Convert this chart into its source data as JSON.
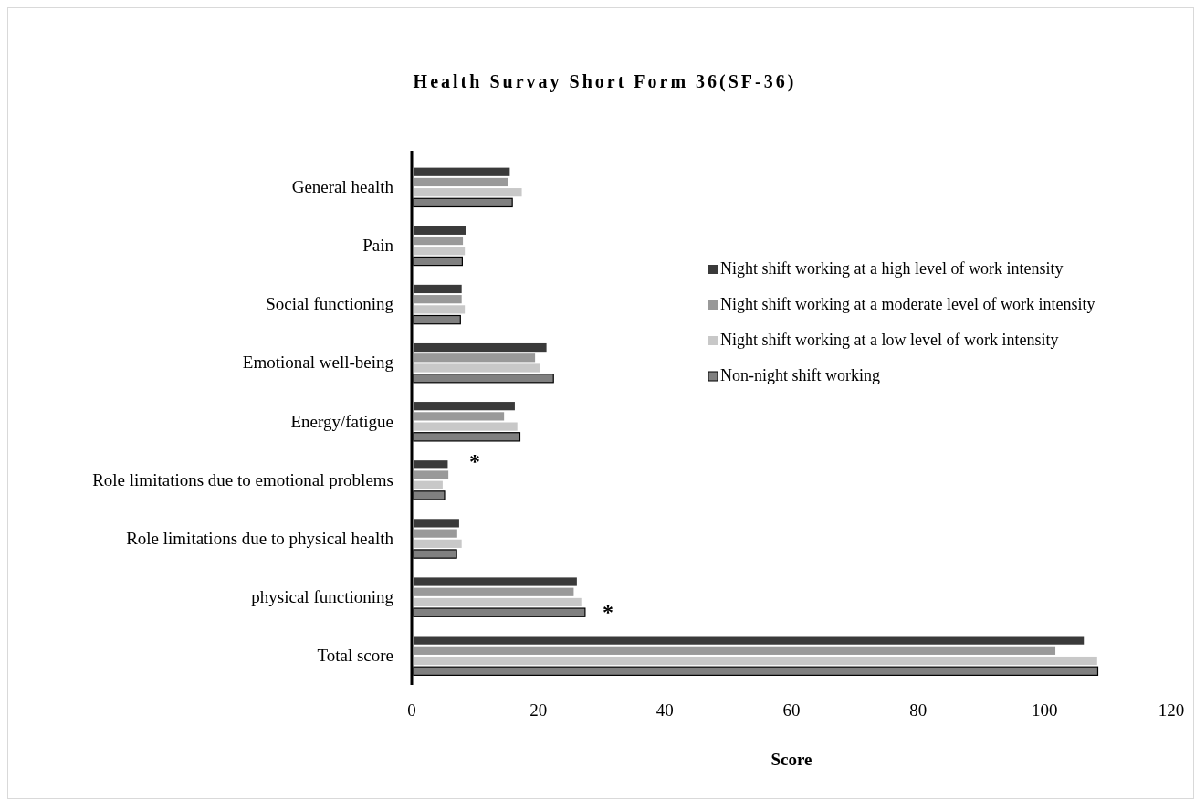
{
  "chart_data": {
    "type": "bar",
    "orientation": "horizontal",
    "title": "Health Survay Short Form 36(SF-36)",
    "xlabel": "Score",
    "categories": [
      "General health",
      "Pain",
      "Social functioning",
      "Emotional well-being",
      "Energy/fatigue",
      "Role limitations due to emotional problems",
      "Role limitations due to physical health",
      "physical functioning",
      "Total score"
    ],
    "series": [
      {
        "name": "Night shift working at a high level of work intensity",
        "color": "#3a3a3a",
        "values": [
          15.2,
          8.3,
          7.6,
          21.0,
          16.0,
          5.4,
          7.2,
          25.8,
          105.9
        ]
      },
      {
        "name": "Night shift working at a moderate level of work intensity",
        "color": "#999999",
        "values": [
          15.0,
          7.8,
          7.6,
          19.2,
          14.3,
          5.5,
          6.9,
          25.3,
          101.4
        ]
      },
      {
        "name": "Night shift working at a low level of work intensity",
        "color": "#c8c8c8",
        "values": [
          17.1,
          8.1,
          8.1,
          20.0,
          16.4,
          4.6,
          7.6,
          26.5,
          108.0
        ]
      },
      {
        "name": "Non-night shift working",
        "color": "#808080",
        "values": [
          15.6,
          7.7,
          7.4,
          22.1,
          16.8,
          4.9,
          6.8,
          27.1,
          108.1
        ]
      }
    ],
    "xlim": [
      0,
      120
    ],
    "xticks": [
      0,
      20,
      40,
      60,
      80,
      100,
      120
    ],
    "grid": false,
    "legend": "right",
    "annotations": [
      "*",
      "*"
    ]
  }
}
